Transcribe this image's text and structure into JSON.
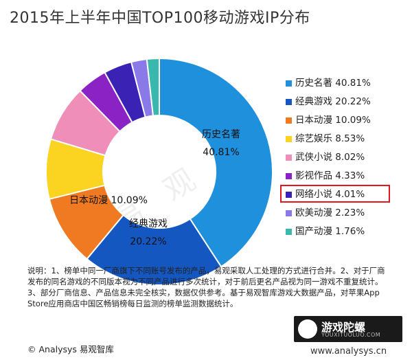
{
  "title": "2015年上半年中国TOP100移动游戏IP分布",
  "chart_data": {
    "type": "pie",
    "style": "donut",
    "categories": [
      "历史名著",
      "经典游戏",
      "日本动漫",
      "综艺娱乐",
      "武侠小说",
      "影视作品",
      "网络小说",
      "欧美动漫",
      "国产动漫"
    ],
    "values": [
      40.81,
      20.22,
      10.09,
      8.53,
      8.02,
      4.33,
      4.01,
      2.23,
      1.76
    ],
    "unit": "%",
    "colors": [
      "#1e90dc",
      "#1557c0",
      "#ef7a22",
      "#fbd321",
      "#ef8eb8",
      "#8a22c4",
      "#3a22b4",
      "#8a7ae8",
      "#3ab8ae"
    ],
    "legend_position": "right",
    "highlighted": "网络小说",
    "slice_labels": [
      {
        "name": "历史名著",
        "value": "40.81%"
      },
      {
        "name": "经典游戏",
        "value": "20.22%"
      },
      {
        "name": "日本动漫",
        "value": "10.09%"
      }
    ],
    "legend": [
      {
        "label": "历史名著 40.81%"
      },
      {
        "label": "经典游戏 20.22%"
      },
      {
        "label": "日本动漫 10.09%"
      },
      {
        "label": "综艺娱乐 8.53%"
      },
      {
        "label": "武侠小说 8.02%"
      },
      {
        "label": "影视作品 4.33%"
      },
      {
        "label": "网络小说 4.01%"
      },
      {
        "label": "欧美动漫 2.23%"
      },
      {
        "label": "国产动漫 1.76%"
      }
    ]
  },
  "note": "说明：1、榜单中同一厂商旗下不同账号发布的产品，易观采取人工处理的方式进行合并。2、对于厂商发布的同名游戏的不同版本视为不同产品进行多次统计，对于前后更名产品视为同一游戏不重复统计。3、部分厂商信息、产品信息未完全核实，数据仅供参考。基于易观智库游戏大数据产品，对苹果App Store应用商店中国区畅销榜每日监测的榜单监测数据统计。",
  "copyright": "© Analysys 易观智库",
  "watermark": "易 观 智",
  "logo": {
    "cn": "游戏陀螺",
    "en": "YOUXITUOLUO.COM"
  },
  "site_url": "www.analysys.cn"
}
